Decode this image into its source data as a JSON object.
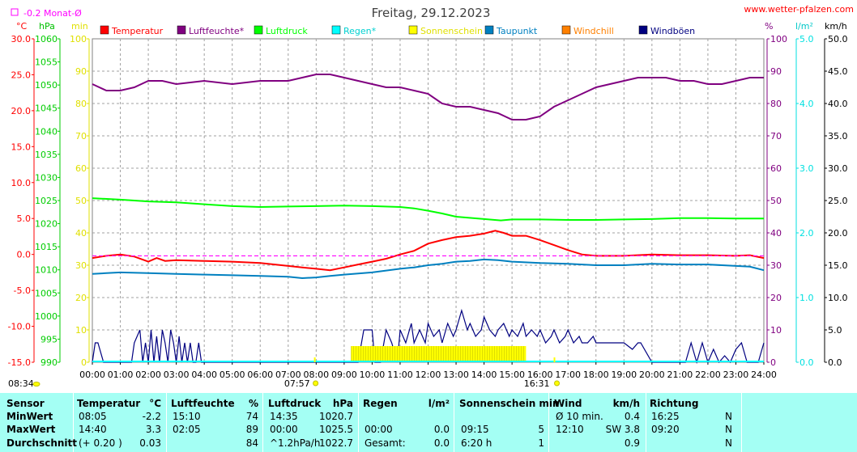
{
  "header": {
    "title": "Freitag, 29.12.2023",
    "site": "www.wetter-pfalzen.com",
    "monat_label": "-0.2 Monat-Ø"
  },
  "axis_units": {
    "temp": "°C",
    "pressure": "hPa",
    "min": "min",
    "percent": "%",
    "rain": "l/m²",
    "wind": "km/h"
  },
  "legend": [
    {
      "label": "Temperatur",
      "color": "#ff0000"
    },
    {
      "label": "Luftfeuchte*",
      "color": "#800080"
    },
    {
      "label": "Luftdruck",
      "color": "#00ff00"
    },
    {
      "label": "Regen*",
      "color": "#00ffff"
    },
    {
      "label": "Sonnenschein",
      "color": "#ffff00"
    },
    {
      "label": "Taupunkt",
      "color": "#0080c0"
    },
    {
      "label": "Windchill",
      "color": "#ff8000"
    },
    {
      "label": "Windböen",
      "color": "#000080"
    }
  ],
  "sun_markers": {
    "sunrise": "07:57",
    "sunset": "16:31"
  },
  "chart_data": {
    "type": "line",
    "title": "Freitag, 29.12.2023",
    "x_range_hours": [
      0,
      24
    ],
    "x_tick_labels": [
      "00:00",
      "01:00",
      "02:00",
      "03:00",
      "04:00",
      "05:00",
      "06:00",
      "07:00",
      "08:00",
      "09:00",
      "10:00",
      "11:00",
      "12:00",
      "13:00",
      "14:00",
      "15:00",
      "16:00",
      "17:00",
      "18:00",
      "19:00",
      "20:00",
      "21:00",
      "22:00",
      "23:00",
      "24:00"
    ],
    "axes": {
      "temp": {
        "range": [
          -15,
          30
        ],
        "ticks": [
          "30.0",
          "25.0",
          "20.0",
          "15.0",
          "10.0",
          "5.0",
          "0.0",
          "-5.0",
          "-10.0",
          "-15.0"
        ],
        "color": "#ff0000"
      },
      "pressure": {
        "range": [
          990,
          1060
        ],
        "ticks": [
          "1060",
          "1055",
          "1050",
          "1045",
          "1040",
          "1035",
          "1030",
          "1025",
          "1020",
          "1015",
          "1010",
          "1005",
          "1000",
          "995",
          "990"
        ],
        "color": "#00cc00"
      },
      "minutes": {
        "range": [
          0,
          100
        ],
        "ticks": [
          "100",
          "90",
          "80",
          "70",
          "60",
          "50",
          "40",
          "30",
          "20",
          "10",
          "0"
        ],
        "color": "#e0e000"
      },
      "humidity": {
        "range": [
          0,
          100
        ],
        "ticks": [
          "100",
          "90",
          "80",
          "70",
          "60",
          "50",
          "40",
          "30",
          "20",
          "10",
          "0"
        ],
        "color": "#800080"
      },
      "rain": {
        "range": [
          0,
          5
        ],
        "ticks": [
          "5.0",
          "4.0",
          "3.0",
          "2.0",
          "1.0",
          "0.0"
        ],
        "color": "#00e0e0"
      },
      "wind": {
        "range": [
          0,
          50
        ],
        "ticks": [
          "50.0",
          "45.0",
          "40.0",
          "35.0",
          "30.0",
          "25.0",
          "20.0",
          "15.0",
          "10.0",
          "5.0",
          "0.0"
        ],
        "color": "#000000"
      }
    },
    "monthly_avg_temp": -0.2,
    "series": [
      {
        "name": "Temperatur",
        "axis": "temp",
        "color": "#ff0000",
        "x": [
          0,
          0.5,
          1,
          1.5,
          2,
          2.3,
          2.6,
          3,
          4,
          5,
          6,
          7,
          7.5,
          8,
          8.5,
          9,
          9.5,
          10,
          10.5,
          11,
          11.5,
          12,
          12.5,
          13,
          13.5,
          14,
          14.4,
          14.7,
          15,
          15.5,
          16,
          16.5,
          17,
          17.5,
          18,
          19,
          20,
          21,
          22,
          23,
          23.5,
          24
        ],
        "y": [
          -0.5,
          -0.2,
          0.0,
          -0.3,
          -1.0,
          -0.5,
          -0.9,
          -0.8,
          -0.9,
          -1.0,
          -1.2,
          -1.6,
          -1.8,
          -2.0,
          -2.2,
          -1.8,
          -1.4,
          -1.0,
          -0.6,
          0.0,
          0.5,
          1.5,
          2.0,
          2.4,
          2.6,
          2.9,
          3.3,
          3.0,
          2.6,
          2.6,
          2.0,
          1.3,
          0.6,
          0.0,
          -0.2,
          -0.2,
          0.0,
          -0.1,
          -0.1,
          -0.2,
          -0.1,
          -0.5
        ]
      },
      {
        "name": "Luftfeuchte*",
        "axis": "humidity",
        "color": "#800080",
        "x": [
          0,
          0.5,
          1,
          1.5,
          2,
          2.5,
          3,
          4,
          5,
          6,
          7,
          7.5,
          8,
          8.5,
          9,
          9.5,
          10,
          10.5,
          11,
          11.5,
          12,
          12.5,
          13,
          13.5,
          14,
          14.5,
          15,
          15.5,
          16,
          16.5,
          17,
          17.5,
          18,
          18.5,
          19,
          19.5,
          20,
          20.5,
          21,
          21.5,
          22,
          22.5,
          23,
          23.5,
          24
        ],
        "y": [
          86,
          84,
          84,
          85,
          87,
          87,
          86,
          87,
          86,
          87,
          87,
          88,
          89,
          89,
          88,
          87,
          86,
          85,
          85,
          84,
          83,
          80,
          79,
          79,
          78,
          77,
          75,
          75,
          76,
          79,
          81,
          83,
          85,
          86,
          87,
          88,
          88,
          88,
          87,
          87,
          86,
          86,
          87,
          88,
          88
        ]
      },
      {
        "name": "Luftdruck",
        "axis": "pressure",
        "color": "#00ff00",
        "x": [
          0,
          1,
          2,
          3,
          4,
          5,
          6,
          7,
          8,
          9,
          10,
          11,
          11.5,
          12,
          12.5,
          13,
          14,
          14.6,
          15,
          16,
          17,
          18,
          19,
          20,
          21,
          22,
          23,
          24
        ],
        "y": [
          1025.5,
          1025.2,
          1024.8,
          1024.6,
          1024.2,
          1023.8,
          1023.6,
          1023.7,
          1023.8,
          1023.9,
          1023.8,
          1023.6,
          1023.3,
          1022.8,
          1022.2,
          1021.5,
          1021.0,
          1020.7,
          1020.9,
          1020.9,
          1020.8,
          1020.8,
          1020.9,
          1021.0,
          1021.2,
          1021.2,
          1021.1,
          1021.1
        ]
      },
      {
        "name": "Taupunkt",
        "axis": "temp",
        "color": "#0080c0",
        "x": [
          0,
          0.5,
          1,
          2,
          3,
          4,
          5,
          6,
          7,
          7.5,
          8,
          8.5,
          9,
          10,
          11,
          11.5,
          12,
          12.5,
          13,
          13.5,
          14,
          14.5,
          15,
          16,
          17,
          18,
          19,
          20,
          21,
          22,
          23,
          23.5,
          24
        ],
        "y": [
          -2.7,
          -2.6,
          -2.5,
          -2.6,
          -2.7,
          -2.8,
          -2.9,
          -3.0,
          -3.1,
          -3.3,
          -3.2,
          -3.0,
          -2.8,
          -2.5,
          -2.0,
          -1.8,
          -1.5,
          -1.3,
          -1.0,
          -0.9,
          -0.7,
          -0.8,
          -1.0,
          -1.2,
          -1.3,
          -1.5,
          -1.5,
          -1.3,
          -1.4,
          -1.4,
          -1.6,
          -1.7,
          -2.2
        ]
      },
      {
        "name": "Windböen",
        "axis": "wind",
        "color": "#000080",
        "x": [
          0,
          0.1,
          0.2,
          0.4,
          0.5,
          1.4,
          1.5,
          1.7,
          1.8,
          1.9,
          2.0,
          2.1,
          2.2,
          2.3,
          2.4,
          2.5,
          2.6,
          2.7,
          2.8,
          2.9,
          3.0,
          3.1,
          3.2,
          3.3,
          3.4,
          3.5,
          3.6,
          3.7,
          3.8,
          3.9,
          4.0,
          4.1,
          9.5,
          9.7,
          10.0,
          10.1,
          10.3,
          10.5,
          10.7,
          10.9,
          11.0,
          11.2,
          11.4,
          11.5,
          11.7,
          11.9,
          12.0,
          12.2,
          12.4,
          12.5,
          12.7,
          12.9,
          13.0,
          13.2,
          13.4,
          13.5,
          13.7,
          13.9,
          14.0,
          14.2,
          14.4,
          14.5,
          14.7,
          14.9,
          15.0,
          15.2,
          15.4,
          15.5,
          15.7,
          15.9,
          16.0,
          16.2,
          16.4,
          16.5,
          16.7,
          16.9,
          17.0,
          17.2,
          17.4,
          17.5,
          17.7,
          17.9,
          18.0,
          18.5,
          19.0,
          19.3,
          19.5,
          19.6,
          20.0,
          20.5,
          20.8,
          21.0,
          21.2,
          21.4,
          21.6,
          21.8,
          22.0,
          22.2,
          22.4,
          22.6,
          22.8,
          23.0,
          23.2,
          23.4,
          23.6,
          23.8,
          24.0
        ],
        "y": [
          0,
          3,
          3,
          0,
          0,
          0,
          3,
          5,
          0,
          3,
          0,
          5,
          0,
          4,
          0,
          5,
          3,
          0,
          5,
          3,
          0,
          4,
          0,
          3,
          0,
          3,
          0,
          0,
          3,
          0,
          0,
          0,
          0,
          5,
          5,
          0,
          0,
          5,
          3,
          0,
          5,
          3,
          6,
          3,
          5,
          3,
          6,
          4,
          5,
          3,
          6,
          4,
          5,
          8,
          5,
          6,
          4,
          5,
          7,
          5,
          4,
          5,
          6,
          4,
          5,
          4,
          6,
          4,
          5,
          4,
          5,
          3,
          4,
          5,
          3,
          4,
          5,
          3,
          4,
          3,
          3,
          4,
          3,
          3,
          3,
          2,
          3,
          3,
          0,
          0,
          0,
          0,
          0,
          3,
          0,
          3,
          0,
          2,
          0,
          1,
          0,
          2,
          3,
          0,
          0,
          0,
          3
        ]
      },
      {
        "name": "Sonnenschein",
        "axis": "minutes",
        "color": "#ffff00",
        "range_hours": [
          9.25,
          15.5
        ],
        "value": 5
      }
    ]
  },
  "stats": {
    "columns": [
      {
        "title": "Sensor",
        "unit": "",
        "rows": [
          {
            "label": "MinWert",
            "time": "",
            "value": ""
          },
          {
            "label": "MaxWert",
            "time": "",
            "value": ""
          },
          {
            "label": "Durchschnitt",
            "time": "",
            "value": ""
          }
        ]
      },
      {
        "title": "Temperatur",
        "unit": "°C",
        "rows": [
          {
            "time": "08:05",
            "value": "-2.2"
          },
          {
            "time": "14:40",
            "value": "3.3"
          },
          {
            "time": "(+ 0.20 )",
            "value": "0.03"
          }
        ]
      },
      {
        "title": "Luftfeuchte",
        "unit": "%",
        "rows": [
          {
            "time": "15:10",
            "value": "74"
          },
          {
            "time": "02:05",
            "value": "89"
          },
          {
            "time": "",
            "value": "84"
          }
        ]
      },
      {
        "title": "Luftdruck",
        "unit": "hPa",
        "rows": [
          {
            "time": "14:35",
            "value": "1020.7"
          },
          {
            "time": "00:00",
            "value": "1025.5"
          },
          {
            "time": "^1.2hPa/h",
            "value": "1022.7"
          }
        ]
      },
      {
        "title": "Regen",
        "unit": "l/m²",
        "rows": [
          {
            "time": "",
            "value": ""
          },
          {
            "time": "00:00",
            "value": "0.0"
          },
          {
            "time": "Gesamt:",
            "value": "0.0"
          }
        ]
      },
      {
        "title": "Sonnenschein min",
        "unit": "",
        "rows": [
          {
            "time": "",
            "value": ""
          },
          {
            "time": "09:15",
            "value": "5"
          },
          {
            "time": "6:20 h",
            "value": "1"
          }
        ]
      },
      {
        "title": "Wind",
        "unit": "km/h",
        "rows": [
          {
            "time": "Ø 10 min.",
            "value": "0.4"
          },
          {
            "time": "12:10",
            "value": "SW 3.8"
          },
          {
            "time": "",
            "value": "0.9"
          }
        ]
      },
      {
        "title": "Richtung",
        "unit": "",
        "rows": [
          {
            "time": "16:25",
            "value": "N"
          },
          {
            "time": "09:20",
            "value": "N"
          },
          {
            "time": "",
            "value": "N"
          }
        ]
      }
    ]
  }
}
